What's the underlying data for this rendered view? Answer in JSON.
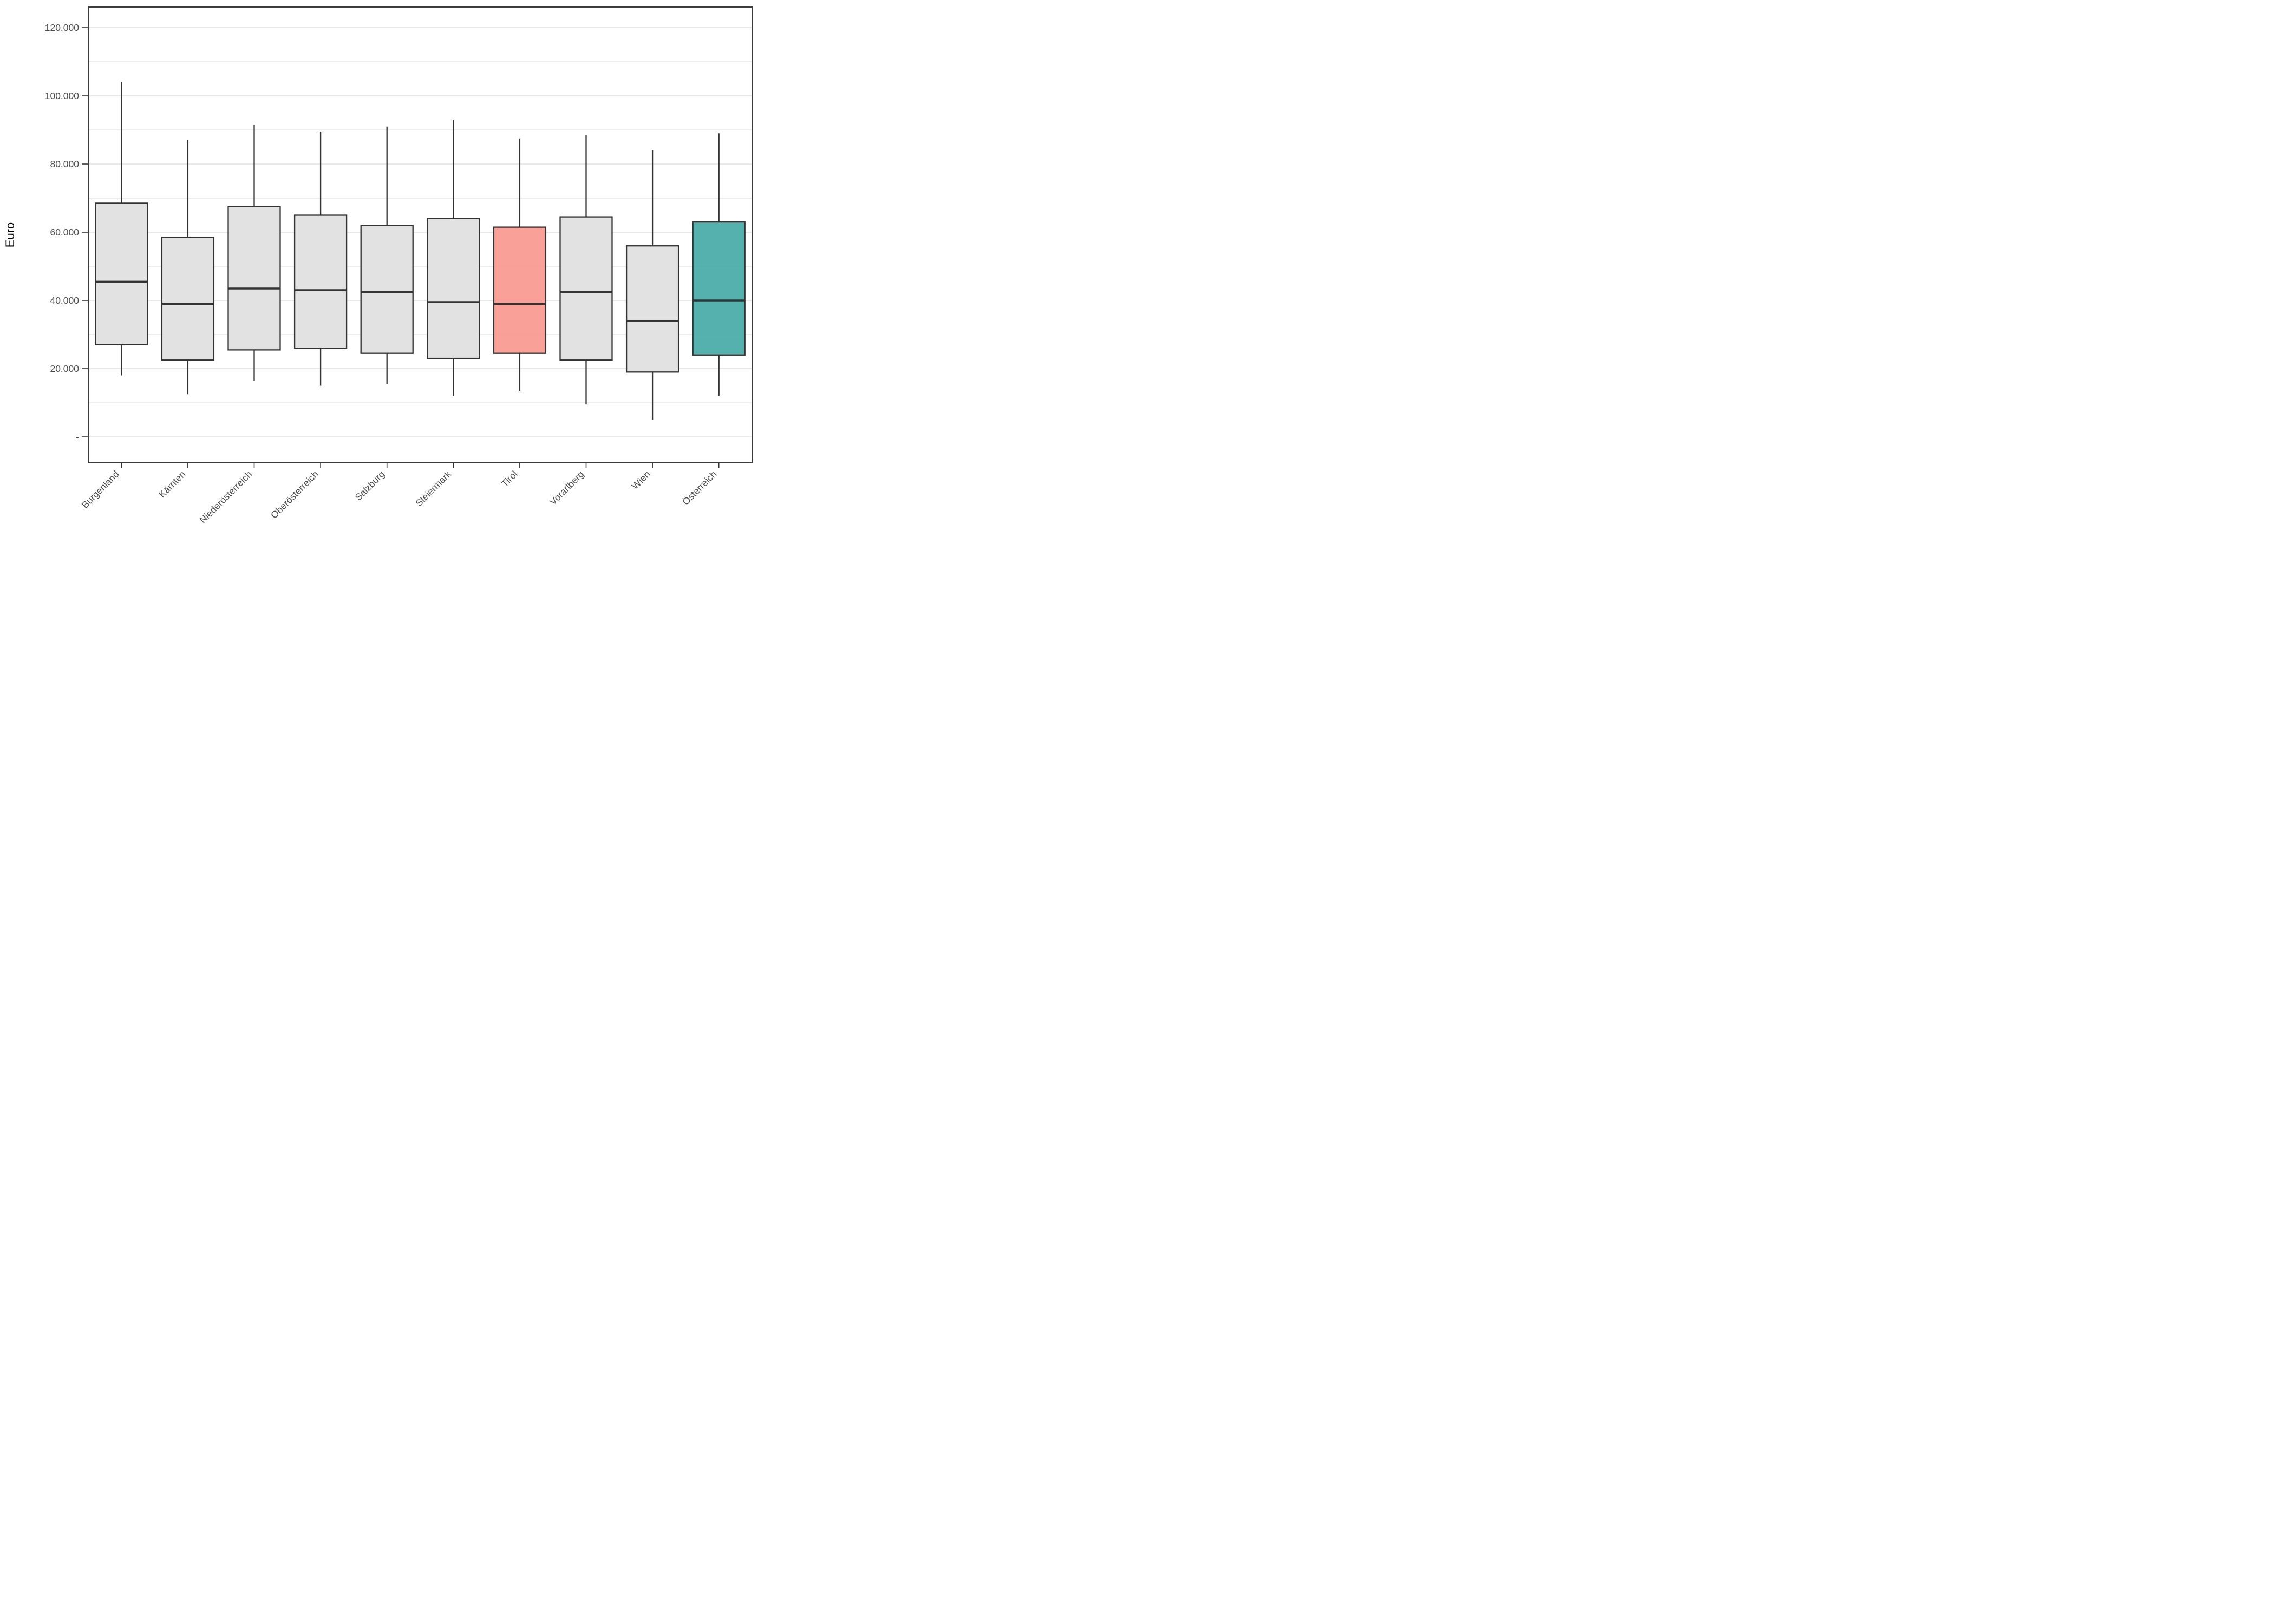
{
  "chart_data": {
    "type": "boxplot",
    "title": "",
    "xlabel": "",
    "ylabel": "Euro",
    "legend": "none",
    "grid": "on",
    "y_axis": {
      "min": 0,
      "max": 120000,
      "major_tick_step": 20000,
      "minor_grid_step": 10000,
      "tick_labels": [
        "-",
        "20.000",
        "40.000",
        "60.000",
        "80.000",
        "100.000",
        "120.000"
      ],
      "tick_values": [
        0,
        20000,
        40000,
        60000,
        80000,
        100000,
        120000
      ]
    },
    "categories": [
      "Burgenland",
      "Kärnten",
      "Niederösterreich",
      "Oberösterreich",
      "Salzburg",
      "Steiermark",
      "Tirol",
      "Vorarlberg",
      "Wien",
      "Österreich"
    ],
    "series": [
      {
        "name": "Burgenland",
        "whisker_low": 18000,
        "q1": 27000,
        "median": 45500,
        "q3": 68500,
        "whisker_high": 104000,
        "fill": "#e0e0e0"
      },
      {
        "name": "Kärnten",
        "whisker_low": 12500,
        "q1": 22500,
        "median": 39000,
        "q3": 58500,
        "whisker_high": 87000,
        "fill": "#e0e0e0"
      },
      {
        "name": "Niederösterreich",
        "whisker_low": 16500,
        "q1": 25500,
        "median": 43500,
        "q3": 67500,
        "whisker_high": 91500,
        "fill": "#e0e0e0"
      },
      {
        "name": "Oberösterreich",
        "whisker_low": 15000,
        "q1": 26000,
        "median": 43000,
        "q3": 65000,
        "whisker_high": 89500,
        "fill": "#e0e0e0"
      },
      {
        "name": "Salzburg",
        "whisker_low": 15500,
        "q1": 24500,
        "median": 42500,
        "q3": 62000,
        "whisker_high": 91000,
        "fill": "#e0e0e0"
      },
      {
        "name": "Steiermark",
        "whisker_low": 12000,
        "q1": 23000,
        "median": 39500,
        "q3": 64000,
        "whisker_high": 93000,
        "fill": "#e0e0e0"
      },
      {
        "name": "Tirol",
        "whisker_low": 13500,
        "q1": 24500,
        "median": 39000,
        "q3": 61500,
        "whisker_high": 87500,
        "fill": "#f99c94"
      },
      {
        "name": "Vorarlberg",
        "whisker_low": 9500,
        "q1": 22500,
        "median": 42500,
        "q3": 64500,
        "whisker_high": 88500,
        "fill": "#e0e0e0"
      },
      {
        "name": "Wien",
        "whisker_low": 5000,
        "q1": 19000,
        "median": 34000,
        "q3": 56000,
        "whisker_high": 84000,
        "fill": "#e0e0e0"
      },
      {
        "name": "Österreich",
        "whisker_low": 12000,
        "q1": 24000,
        "median": 40000,
        "q3": 63000,
        "whisker_high": 89000,
        "fill": "#4badaa"
      }
    ],
    "colors": {
      "default_box_fill": "#e0e0e0",
      "tirol_highlight_fill": "#f99c94",
      "oesterreich_highlight_fill": "#4badaa",
      "box_border": "#333333",
      "median_line": "#333333",
      "whisker": "#333333",
      "gridline": "#dcdcdc",
      "panel_border": "#3c3c3c",
      "tick_text": "#4a4a4a",
      "background": "#ffffff"
    }
  }
}
